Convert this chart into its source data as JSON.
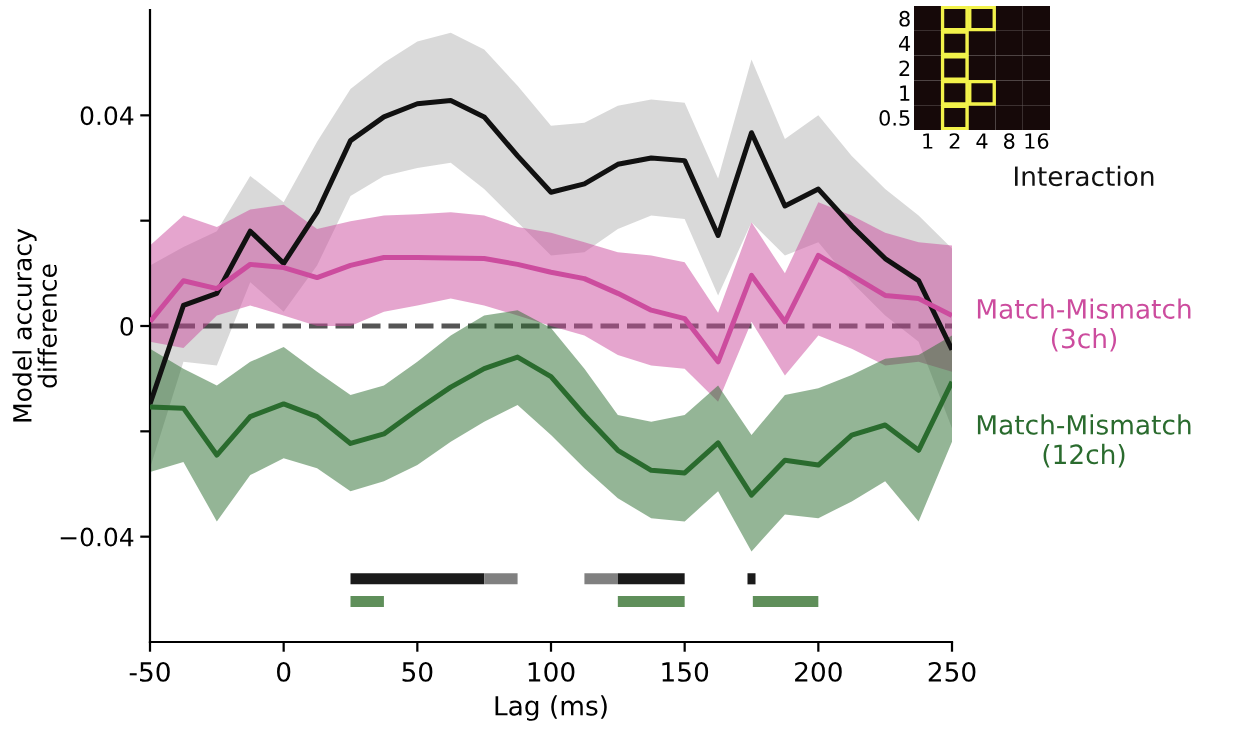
{
  "chart_data": [
    {
      "type": "line",
      "xlabel": "Lag (ms)",
      "ylabel": "Model accuracy\ndifference",
      "xlim": [
        -50,
        250
      ],
      "xticks": [
        -50,
        0,
        50,
        100,
        150,
        200,
        250
      ],
      "ylim": [
        -0.06,
        0.06
      ],
      "yticks": [
        {
          "value": -0.04,
          "label": "−0.04"
        },
        {
          "value": -0.02,
          "label": null
        },
        0,
        {
          "value": 0.02,
          "label": null
        },
        0.04
      ],
      "grid": false,
      "legend": false,
      "x": [
        -50,
        -37.5,
        -25,
        -12.5,
        0,
        12.5,
        25,
        37.5,
        50,
        62.5,
        75,
        87.5,
        100,
        112.5,
        125,
        137.5,
        150,
        162.5,
        175,
        187.5,
        200,
        212.5,
        225,
        237.5,
        250
      ],
      "ref_lines": [
        {
          "axis": "y",
          "value": 0,
          "label": null,
          "color": "#555555",
          "line_style": "dashed"
        }
      ],
      "series": [
        {
          "name": "Interaction",
          "color": "#111111",
          "values": [
            -0.0148,
            0.0039,
            0.0062,
            0.018,
            0.0119,
            0.0216,
            0.0352,
            0.0397,
            0.0422,
            0.0428,
            0.0397,
            0.0323,
            0.0254,
            0.027,
            0.0307,
            0.0319,
            0.0314,
            0.0172,
            0.0367,
            0.0228,
            0.026,
            0.019,
            0.0128,
            0.0086,
            -0.0045
          ],
          "upper": [
            0.0115,
            0.015,
            0.018,
            0.0285,
            0.0235,
            0.035,
            0.045,
            0.05,
            0.054,
            0.0557,
            0.0525,
            0.0456,
            0.038,
            0.0386,
            0.0418,
            0.043,
            0.0424,
            0.028,
            0.0506,
            0.0355,
            0.04,
            0.0323,
            0.026,
            0.021,
            0.0147
          ],
          "lower": [
            -0.027,
            -0.0068,
            -0.0075,
            0.0083,
            0.0027,
            0.0115,
            0.0247,
            0.0285,
            0.03,
            0.031,
            0.026,
            0.0197,
            0.0134,
            0.014,
            0.0184,
            0.021,
            0.0203,
            0.0058,
            0.0197,
            0.0134,
            0.0159,
            0.0083,
            0.002,
            -0.003,
            -0.0194
          ]
        },
        {
          "name": "Match-Mismatch\n(3ch)",
          "color": "#cc4c9e",
          "values": [
            0.0008,
            0.0086,
            0.0071,
            0.0117,
            0.0111,
            0.0092,
            0.0115,
            0.013,
            0.013,
            0.0129,
            0.0128,
            0.0117,
            0.0102,
            0.009,
            0.0062,
            0.003,
            0.0014,
            -0.0068,
            0.0096,
            0.0008,
            0.0134,
            0.0096,
            0.0058,
            0.0052,
            0.002
          ],
          "upper": [
            0.0153,
            0.021,
            0.0188,
            0.0221,
            0.023,
            0.0184,
            0.0199,
            0.021,
            0.0212,
            0.0216,
            0.021,
            0.0188,
            0.0177,
            0.0159,
            0.014,
            0.0134,
            0.0121,
            0.0025,
            0.0197,
            0.01,
            0.0235,
            0.021,
            0.0177,
            0.0159,
            0.0153
          ],
          "lower": [
            -0.003,
            -0.0042,
            0.002,
            0.0039,
            0.002,
            0.0,
            0.0,
            0.0027,
            0.0039,
            0.0052,
            0.0039,
            0.002,
            0.0,
            -0.0018,
            -0.0055,
            -0.0075,
            -0.0081,
            -0.0144,
            0.0008,
            -0.0094,
            -0.0018,
            -0.0043,
            -0.0075,
            -0.0068,
            -0.0087
          ]
        },
        {
          "name": "Match-Mismatch\n(12ch)",
          "color": "#2a6b2e",
          "values": [
            -0.0154,
            -0.0156,
            -0.0245,
            -0.0172,
            -0.0148,
            -0.0172,
            -0.0223,
            -0.0205,
            -0.0159,
            -0.0116,
            -0.0081,
            -0.0059,
            -0.0096,
            -0.0169,
            -0.0236,
            -0.0274,
            -0.0279,
            -0.0222,
            -0.0321,
            -0.0255,
            -0.0264,
            -0.0207,
            -0.0188,
            -0.0236,
            -0.0106
          ],
          "upper": [
            -0.0043,
            -0.0081,
            -0.0113,
            -0.0068,
            -0.004,
            -0.0087,
            -0.0131,
            -0.0113,
            -0.0068,
            -0.0018,
            0.002,
            0.003,
            -0.0004,
            -0.0081,
            -0.0169,
            -0.0182,
            -0.0169,
            -0.0113,
            -0.0207,
            -0.0131,
            -0.0118,
            -0.0093,
            -0.0062,
            -0.0055,
            -0.0018
          ],
          "lower": [
            -0.0277,
            -0.0258,
            -0.0371,
            -0.0283,
            -0.0251,
            -0.027,
            -0.0314,
            -0.0295,
            -0.0264,
            -0.022,
            -0.0182,
            -0.015,
            -0.0207,
            -0.027,
            -0.0327,
            -0.0365,
            -0.0371,
            -0.0314,
            -0.0428,
            -0.0358,
            -0.0365,
            -0.0333,
            -0.0295,
            -0.0371,
            -0.022
          ]
        },
        {
          "color": "#1a1a1a",
          "x": [
            25,
            75
          ],
          "values": [
            -0.048,
            -0.048
          ]
        },
        {
          "color": "#808080",
          "x": [
            75,
            87.5
          ],
          "values": [
            -0.048,
            -0.048
          ]
        },
        {
          "color": "#808080",
          "x": [
            112.5,
            125
          ],
          "values": [
            -0.048,
            -0.048
          ]
        },
        {
          "color": "#1a1a1a",
          "x": [
            125,
            150
          ],
          "values": [
            -0.048,
            -0.048
          ]
        },
        {
          "color": "#1a1a1a",
          "x": [
            173.5,
            176.5
          ],
          "values": [
            -0.048,
            -0.048
          ]
        },
        {
          "color": "#5f8f5a",
          "x": [
            25,
            37.5
          ],
          "values": [
            -0.0523,
            -0.0523
          ]
        },
        {
          "color": "#5f8f5a",
          "x": [
            125,
            150
          ],
          "values": [
            -0.0523,
            -0.0523
          ]
        },
        {
          "color": "#5f8f5a",
          "x": [
            175.5,
            200
          ],
          "values": [
            -0.0523,
            -0.0523
          ]
        }
      ]
    },
    {
      "type": "other",
      "categories": [
        "1",
        "2",
        "4",
        "8",
        "16"
      ],
      "y_categories": [
        "8",
        "4",
        "2",
        "1",
        "0.5"
      ],
      "color": "#160909",
      "colors": [
        [
          null,
          "#f2f24a",
          "#f2f24a",
          null,
          null
        ],
        [
          null,
          "#f2f24a",
          null,
          null,
          null
        ],
        [
          null,
          "#f2f24a",
          null,
          null,
          null
        ],
        [
          null,
          "#f2f24a",
          "#f2f24a",
          null,
          null
        ],
        [
          null,
          "#f2f24a",
          null,
          null,
          null
        ]
      ]
    }
  ]
}
